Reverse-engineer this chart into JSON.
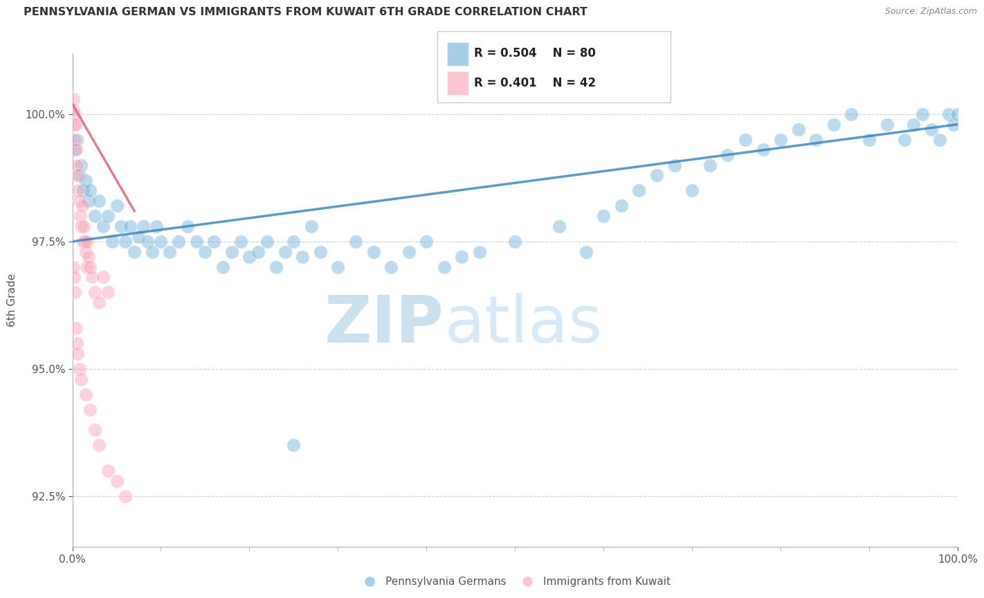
{
  "title": "PENNSYLVANIA GERMAN VS IMMIGRANTS FROM KUWAIT 6TH GRADE CORRELATION CHART",
  "source": "Source: ZipAtlas.com",
  "ylabel": "6th Grade",
  "xlim": [
    0.0,
    100.0
  ],
  "ylim": [
    91.5,
    101.2
  ],
  "yticks": [
    92.5,
    95.0,
    97.5,
    100.0
  ],
  "ytick_labels": [
    "92.5%",
    "95.0%",
    "97.5%",
    "100.0%"
  ],
  "xticks": [
    0.0,
    100.0
  ],
  "xtick_labels": [
    "0.0%",
    "100.0%"
  ],
  "legend_labels": [
    "Pennsylvania Germans",
    "Immigrants from Kuwait"
  ],
  "legend_R": [
    "R = 0.504",
    "R = 0.401"
  ],
  "legend_N": [
    "N = 80",
    "N = 42"
  ],
  "blue_color": "#6baed6",
  "pink_color": "#fa9fb5",
  "blue_line_color": "#3182bd",
  "pink_line_color": "#e05a7a",
  "watermark_zip": "ZIP",
  "watermark_atlas": "atlas",
  "watermark_color_zip": "#b8d4e8",
  "watermark_color_atlas": "#c8dff0",
  "background_color": "#ffffff",
  "grid_color": "#d0d0d0",
  "blue_points_x": [
    0.3,
    0.5,
    0.8,
    1.0,
    1.2,
    1.5,
    1.8,
    2.0,
    2.5,
    3.0,
    3.5,
    4.0,
    4.5,
    5.0,
    5.5,
    6.0,
    6.5,
    7.0,
    7.5,
    8.0,
    8.5,
    9.0,
    9.5,
    10.0,
    11.0,
    12.0,
    13.0,
    14.0,
    15.0,
    16.0,
    17.0,
    18.0,
    19.0,
    20.0,
    21.0,
    22.0,
    23.0,
    24.0,
    25.0,
    26.0,
    28.0,
    30.0,
    32.0,
    34.0,
    36.0,
    38.0,
    40.0,
    42.0,
    44.0,
    46.0,
    50.0,
    55.0,
    58.0,
    60.0,
    62.0,
    64.0,
    66.0,
    68.0,
    70.0,
    72.0,
    74.0,
    76.0,
    78.0,
    80.0,
    82.0,
    84.0,
    86.0,
    88.0,
    90.0,
    92.0,
    94.0,
    95.0,
    96.0,
    97.0,
    98.0,
    99.0,
    99.5,
    100.0,
    25.0,
    27.0
  ],
  "blue_points_y": [
    99.3,
    99.5,
    98.8,
    99.0,
    98.5,
    98.7,
    98.3,
    98.5,
    98.0,
    98.3,
    97.8,
    98.0,
    97.5,
    98.2,
    97.8,
    97.5,
    97.8,
    97.3,
    97.6,
    97.8,
    97.5,
    97.3,
    97.8,
    97.5,
    97.3,
    97.5,
    97.8,
    97.5,
    97.3,
    97.5,
    97.0,
    97.3,
    97.5,
    97.2,
    97.3,
    97.5,
    97.0,
    97.3,
    97.5,
    97.2,
    97.3,
    97.0,
    97.5,
    97.3,
    97.0,
    97.3,
    97.5,
    97.0,
    97.2,
    97.3,
    97.5,
    97.8,
    97.3,
    98.0,
    98.2,
    98.5,
    98.8,
    99.0,
    98.5,
    99.0,
    99.2,
    99.5,
    99.3,
    99.5,
    99.7,
    99.5,
    99.8,
    100.0,
    99.5,
    99.8,
    99.5,
    99.8,
    100.0,
    99.7,
    99.5,
    100.0,
    99.8,
    100.0,
    93.5,
    97.8
  ],
  "pink_points_x": [
    0.1,
    0.15,
    0.2,
    0.25,
    0.3,
    0.35,
    0.4,
    0.5,
    0.6,
    0.7,
    0.8,
    0.9,
    1.0,
    1.1,
    1.2,
    1.3,
    1.4,
    1.5,
    1.6,
    1.7,
    1.8,
    2.0,
    2.2,
    2.5,
    3.0,
    3.5,
    4.0,
    0.1,
    0.2,
    0.3,
    0.4,
    0.5,
    0.6,
    0.8,
    1.0,
    1.5,
    2.0,
    2.5,
    3.0,
    4.0,
    5.0,
    6.0
  ],
  "pink_points_y": [
    100.3,
    100.1,
    99.8,
    100.0,
    99.5,
    99.8,
    99.3,
    99.0,
    98.8,
    98.5,
    98.3,
    98.0,
    97.8,
    98.2,
    97.5,
    97.8,
    97.5,
    97.3,
    97.0,
    97.5,
    97.2,
    97.0,
    96.8,
    96.5,
    96.3,
    96.8,
    96.5,
    97.0,
    96.8,
    96.5,
    95.8,
    95.5,
    95.3,
    95.0,
    94.8,
    94.5,
    94.2,
    93.8,
    93.5,
    93.0,
    92.8,
    92.5
  ],
  "blue_trend_x": [
    0.0,
    100.0
  ],
  "blue_trend_y": [
    97.5,
    99.8
  ],
  "pink_trend_x": [
    0.0,
    7.0
  ],
  "pink_trend_y": [
    100.2,
    98.1
  ]
}
